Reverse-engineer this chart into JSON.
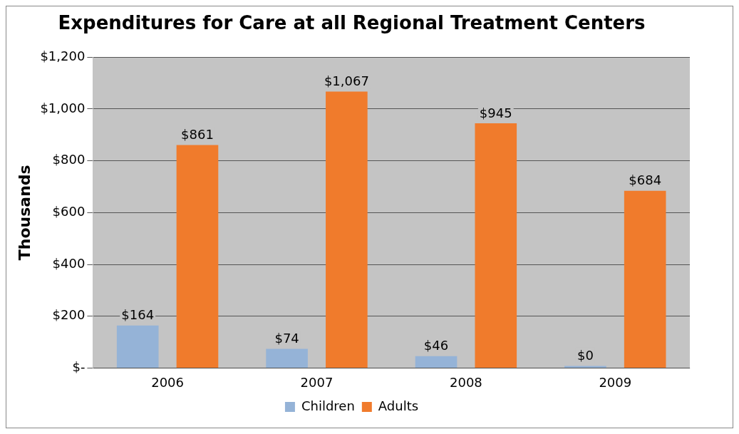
{
  "chart_data": {
    "type": "bar",
    "title": "Expenditures for Care at all Regional Treatment Centers",
    "ylabel": "Thousands",
    "categories": [
      "2006",
      "2007",
      "2008",
      "2009"
    ],
    "series": [
      {
        "name": "Children",
        "color": "#95b3d7",
        "values": [
          164,
          74,
          46,
          0
        ],
        "value_labels": [
          "$164",
          "$74",
          "$46",
          "$0"
        ]
      },
      {
        "name": "Adults",
        "color": "#f07b2c",
        "values": [
          861,
          1067,
          945,
          684
        ],
        "value_labels": [
          "$861",
          "$1,067",
          "$945",
          "$684"
        ]
      }
    ],
    "ylim": [
      0,
      1200
    ],
    "yticks": [
      {
        "value": 0,
        "label": "$-"
      },
      {
        "value": 200,
        "label": "$200"
      },
      {
        "value": 400,
        "label": "$400"
      },
      {
        "value": 600,
        "label": "$600"
      },
      {
        "value": 800,
        "label": "$800"
      },
      {
        "value": 1000,
        "label": "$1,000"
      },
      {
        "value": 1200,
        "label": "$1,200"
      }
    ],
    "grid": "y",
    "legend": "bottom"
  }
}
